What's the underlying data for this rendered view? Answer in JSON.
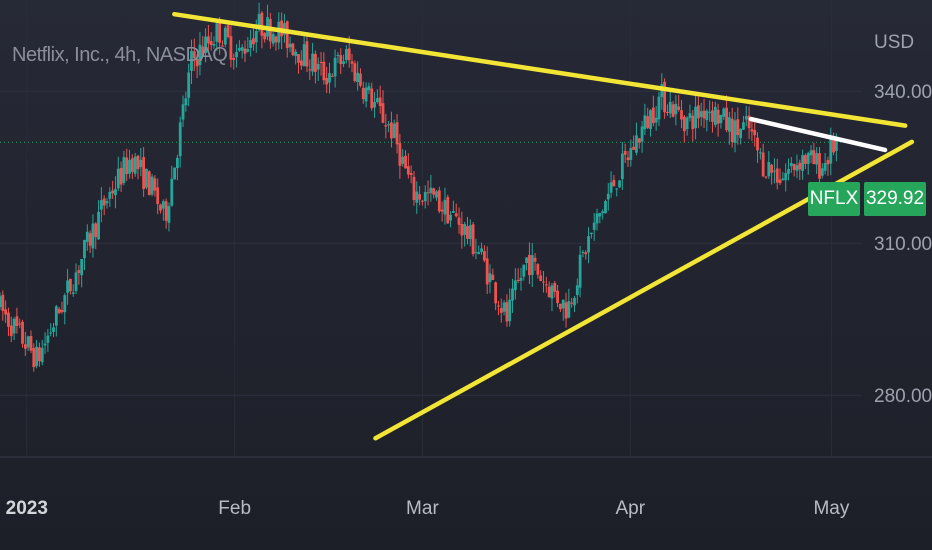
{
  "chart_data": {
    "type": "candlestick",
    "title": "Netflix, Inc., 4h, NASDAQ",
    "currency": "USD",
    "x_ticks": [
      "2023",
      "Feb",
      "Mar",
      "Apr",
      "May"
    ],
    "y_ticks": [
      {
        "value": 340,
        "label": "340.00"
      },
      {
        "value": 310,
        "label": "310.00"
      },
      {
        "value": 280,
        "label": "280.00"
      }
    ],
    "ylim": [
      268,
      358
    ],
    "xlim": [
      "2022-12-28",
      "2023-05-16"
    ],
    "last_price": {
      "symbol": "NFLX",
      "value": 329.92,
      "label": "329.92"
    },
    "trendlines": [
      {
        "name": "upper-resistance",
        "color": "#f2e535",
        "points": [
          [
            "2023-01-23",
            355.2
          ],
          [
            "2023-05-12",
            333.2
          ]
        ]
      },
      {
        "name": "lower-support",
        "color": "#f2e535",
        "points": [
          [
            "2023-02-22",
            271.5
          ],
          [
            "2023-05-13",
            330.0
          ]
        ]
      },
      {
        "name": "inner-resistance",
        "color": "#ffffff",
        "points": [
          [
            "2023-04-19",
            334.5
          ],
          [
            "2023-05-09",
            328.4
          ]
        ]
      }
    ],
    "up_color": "#26a69a",
    "down_color": "#ef5350",
    "price_path": [
      [
        "2022-12-28",
        298
      ],
      [
        "2023-01-03",
        287
      ],
      [
        "2023-01-05",
        293
      ],
      [
        "2023-01-09",
        305
      ],
      [
        "2023-01-13",
        318
      ],
      [
        "2023-01-17",
        327
      ],
      [
        "2023-01-20",
        321
      ],
      [
        "2023-01-22",
        315
      ],
      [
        "2023-01-24",
        330
      ],
      [
        "2023-01-26",
        346
      ],
      [
        "2023-01-30",
        352
      ],
      [
        "2023-02-02",
        347
      ],
      [
        "2023-02-05",
        353
      ],
      [
        "2023-02-08",
        352
      ],
      [
        "2023-02-11",
        348
      ],
      [
        "2023-02-15",
        343
      ],
      [
        "2023-02-18",
        347
      ],
      [
        "2023-02-21",
        340
      ],
      [
        "2023-02-25",
        332
      ],
      [
        "2023-02-28",
        320
      ],
      [
        "2023-03-03",
        319
      ],
      [
        "2023-03-07",
        314
      ],
      [
        "2023-03-10",
        308
      ],
      [
        "2023-03-14",
        295
      ],
      [
        "2023-03-17",
        307
      ],
      [
        "2023-03-20",
        302
      ],
      [
        "2023-03-23",
        297
      ],
      [
        "2023-03-26",
        310
      ],
      [
        "2023-03-30",
        322
      ],
      [
        "2023-04-03",
        332
      ],
      [
        "2023-04-06",
        339
      ],
      [
        "2023-04-10",
        334
      ],
      [
        "2023-04-13",
        337
      ],
      [
        "2023-04-17",
        332
      ],
      [
        "2023-04-19",
        333
      ],
      [
        "2023-04-21",
        326
      ],
      [
        "2023-04-24",
        323
      ],
      [
        "2023-04-27",
        327
      ],
      [
        "2023-04-30",
        325
      ],
      [
        "2023-05-02",
        329.92
      ]
    ]
  }
}
